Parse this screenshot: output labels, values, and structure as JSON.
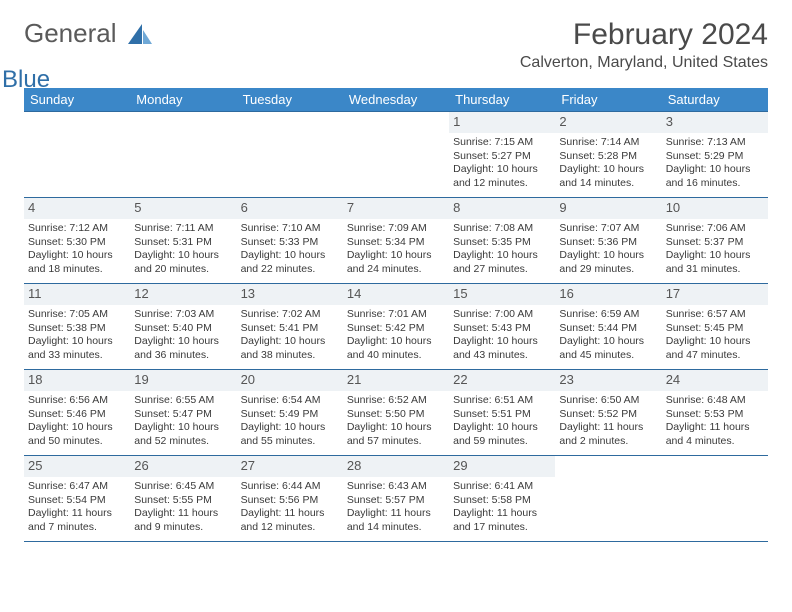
{
  "brand": {
    "part1": "General",
    "part2": "Blue"
  },
  "title": "February 2024",
  "location": "Calverton, Maryland, United States",
  "colors": {
    "header_bg": "#3b87c8",
    "border": "#2e6a9e",
    "daynum_bg": "#eef2f5"
  },
  "dayHeaders": [
    "Sunday",
    "Monday",
    "Tuesday",
    "Wednesday",
    "Thursday",
    "Friday",
    "Saturday"
  ],
  "weeks": [
    [
      null,
      null,
      null,
      null,
      {
        "n": "1",
        "sr": "Sunrise: 7:15 AM",
        "ss": "Sunset: 5:27 PM",
        "dl": "Daylight: 10 hours and 12 minutes."
      },
      {
        "n": "2",
        "sr": "Sunrise: 7:14 AM",
        "ss": "Sunset: 5:28 PM",
        "dl": "Daylight: 10 hours and 14 minutes."
      },
      {
        "n": "3",
        "sr": "Sunrise: 7:13 AM",
        "ss": "Sunset: 5:29 PM",
        "dl": "Daylight: 10 hours and 16 minutes."
      }
    ],
    [
      {
        "n": "4",
        "sr": "Sunrise: 7:12 AM",
        "ss": "Sunset: 5:30 PM",
        "dl": "Daylight: 10 hours and 18 minutes."
      },
      {
        "n": "5",
        "sr": "Sunrise: 7:11 AM",
        "ss": "Sunset: 5:31 PM",
        "dl": "Daylight: 10 hours and 20 minutes."
      },
      {
        "n": "6",
        "sr": "Sunrise: 7:10 AM",
        "ss": "Sunset: 5:33 PM",
        "dl": "Daylight: 10 hours and 22 minutes."
      },
      {
        "n": "7",
        "sr": "Sunrise: 7:09 AM",
        "ss": "Sunset: 5:34 PM",
        "dl": "Daylight: 10 hours and 24 minutes."
      },
      {
        "n": "8",
        "sr": "Sunrise: 7:08 AM",
        "ss": "Sunset: 5:35 PM",
        "dl": "Daylight: 10 hours and 27 minutes."
      },
      {
        "n": "9",
        "sr": "Sunrise: 7:07 AM",
        "ss": "Sunset: 5:36 PM",
        "dl": "Daylight: 10 hours and 29 minutes."
      },
      {
        "n": "10",
        "sr": "Sunrise: 7:06 AM",
        "ss": "Sunset: 5:37 PM",
        "dl": "Daylight: 10 hours and 31 minutes."
      }
    ],
    [
      {
        "n": "11",
        "sr": "Sunrise: 7:05 AM",
        "ss": "Sunset: 5:38 PM",
        "dl": "Daylight: 10 hours and 33 minutes."
      },
      {
        "n": "12",
        "sr": "Sunrise: 7:03 AM",
        "ss": "Sunset: 5:40 PM",
        "dl": "Daylight: 10 hours and 36 minutes."
      },
      {
        "n": "13",
        "sr": "Sunrise: 7:02 AM",
        "ss": "Sunset: 5:41 PM",
        "dl": "Daylight: 10 hours and 38 minutes."
      },
      {
        "n": "14",
        "sr": "Sunrise: 7:01 AM",
        "ss": "Sunset: 5:42 PM",
        "dl": "Daylight: 10 hours and 40 minutes."
      },
      {
        "n": "15",
        "sr": "Sunrise: 7:00 AM",
        "ss": "Sunset: 5:43 PM",
        "dl": "Daylight: 10 hours and 43 minutes."
      },
      {
        "n": "16",
        "sr": "Sunrise: 6:59 AM",
        "ss": "Sunset: 5:44 PM",
        "dl": "Daylight: 10 hours and 45 minutes."
      },
      {
        "n": "17",
        "sr": "Sunrise: 6:57 AM",
        "ss": "Sunset: 5:45 PM",
        "dl": "Daylight: 10 hours and 47 minutes."
      }
    ],
    [
      {
        "n": "18",
        "sr": "Sunrise: 6:56 AM",
        "ss": "Sunset: 5:46 PM",
        "dl": "Daylight: 10 hours and 50 minutes."
      },
      {
        "n": "19",
        "sr": "Sunrise: 6:55 AM",
        "ss": "Sunset: 5:47 PM",
        "dl": "Daylight: 10 hours and 52 minutes."
      },
      {
        "n": "20",
        "sr": "Sunrise: 6:54 AM",
        "ss": "Sunset: 5:49 PM",
        "dl": "Daylight: 10 hours and 55 minutes."
      },
      {
        "n": "21",
        "sr": "Sunrise: 6:52 AM",
        "ss": "Sunset: 5:50 PM",
        "dl": "Daylight: 10 hours and 57 minutes."
      },
      {
        "n": "22",
        "sr": "Sunrise: 6:51 AM",
        "ss": "Sunset: 5:51 PM",
        "dl": "Daylight: 10 hours and 59 minutes."
      },
      {
        "n": "23",
        "sr": "Sunrise: 6:50 AM",
        "ss": "Sunset: 5:52 PM",
        "dl": "Daylight: 11 hours and 2 minutes."
      },
      {
        "n": "24",
        "sr": "Sunrise: 6:48 AM",
        "ss": "Sunset: 5:53 PM",
        "dl": "Daylight: 11 hours and 4 minutes."
      }
    ],
    [
      {
        "n": "25",
        "sr": "Sunrise: 6:47 AM",
        "ss": "Sunset: 5:54 PM",
        "dl": "Daylight: 11 hours and 7 minutes."
      },
      {
        "n": "26",
        "sr": "Sunrise: 6:45 AM",
        "ss": "Sunset: 5:55 PM",
        "dl": "Daylight: 11 hours and 9 minutes."
      },
      {
        "n": "27",
        "sr": "Sunrise: 6:44 AM",
        "ss": "Sunset: 5:56 PM",
        "dl": "Daylight: 11 hours and 12 minutes."
      },
      {
        "n": "28",
        "sr": "Sunrise: 6:43 AM",
        "ss": "Sunset: 5:57 PM",
        "dl": "Daylight: 11 hours and 14 minutes."
      },
      {
        "n": "29",
        "sr": "Sunrise: 6:41 AM",
        "ss": "Sunset: 5:58 PM",
        "dl": "Daylight: 11 hours and 17 minutes."
      },
      null,
      null
    ]
  ]
}
